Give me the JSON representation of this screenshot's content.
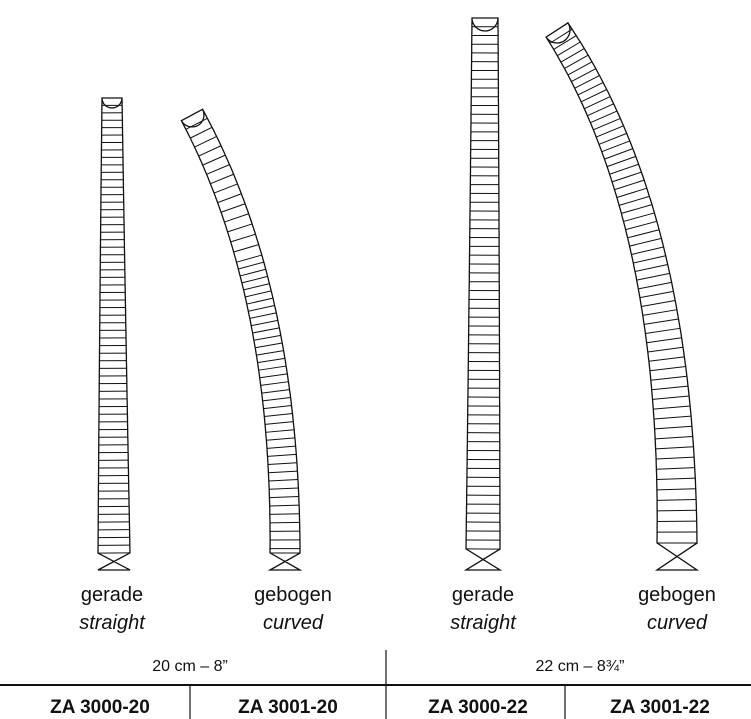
{
  "items": [
    {
      "label_de": "gerade",
      "label_en": "straight"
    },
    {
      "label_de": "gebogen",
      "label_en": "curved"
    },
    {
      "label_de": "gerade",
      "label_en": "straight"
    },
    {
      "label_de": "gebogen",
      "label_en": "curved"
    }
  ],
  "sizes": [
    "20 cm – 8”",
    "22 cm – 8¾”"
  ],
  "codes": [
    "ZA 3000-20",
    "ZA 3001-20",
    "ZA 3000-22",
    "ZA 3001-22"
  ]
}
